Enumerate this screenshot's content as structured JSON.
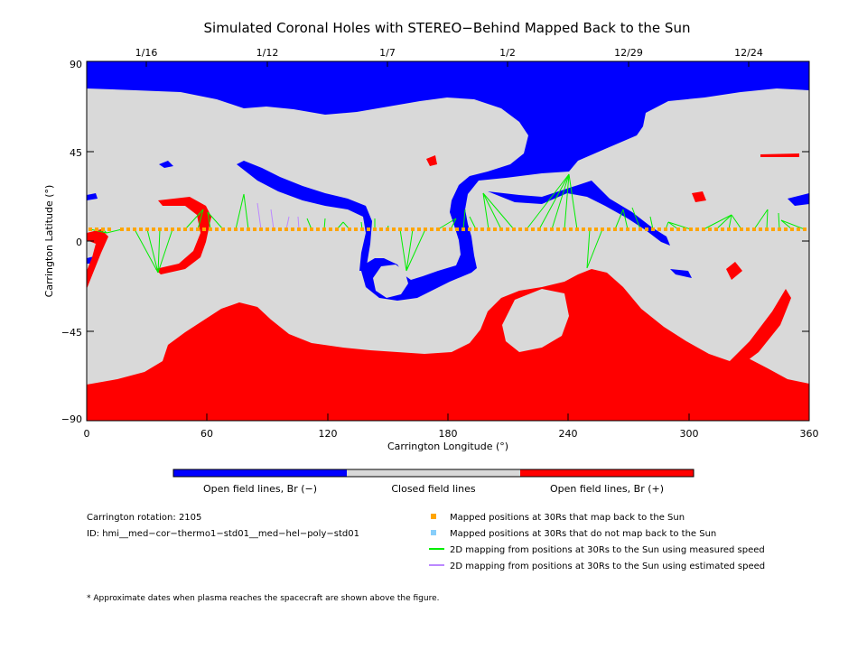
{
  "figure": {
    "title": "Simulated Coronal Holes with STEREO−Behind Mapped Back to the Sun",
    "xlabel": "Carrington Longitude (°)",
    "ylabel": "Carrington Latitude (°)",
    "x_ticks": [
      "0",
      "60",
      "120",
      "180",
      "240",
      "300",
      "360"
    ],
    "y_ticks": [
      "90",
      "45",
      "0",
      "−45",
      "−90"
    ],
    "date_ticks": [
      "1/16",
      "1/12",
      "1/7",
      "1/2",
      "12/29",
      "12/24"
    ],
    "colors": {
      "negative": "#0000ff",
      "closed": "#d9d9d9",
      "positive": "#ff0000",
      "mapped": "#ffa500",
      "unmapped": "#87cefa",
      "measured": "#00ee00",
      "estimated": "#bb88ff"
    }
  },
  "colorbar": {
    "labels": [
      "Open field lines, Br (−)",
      "Closed field lines",
      "Open field lines, Br (+)"
    ]
  },
  "info": {
    "rotation": "Carrington rotation: 2105",
    "id": "ID: hmi__med−cor−thermo1−std01__med−hel−poly−std01"
  },
  "legend": {
    "items": [
      {
        "label": "Mapped positions at 30Rs that map back to the Sun",
        "kind": "mapped"
      },
      {
        "label": "Mapped positions at 30Rs that do not map back to the Sun",
        "kind": "unmapped"
      },
      {
        "label": "2D mapping from positions at 30Rs to the Sun using measured speed",
        "kind": "measured"
      },
      {
        "label": "2D mapping from positions at 30Rs to the Sun using estimated speed",
        "kind": "estimated"
      }
    ]
  },
  "footnote": "* Approximate dates when plasma reaches the spacecraft are shown above the figure."
}
